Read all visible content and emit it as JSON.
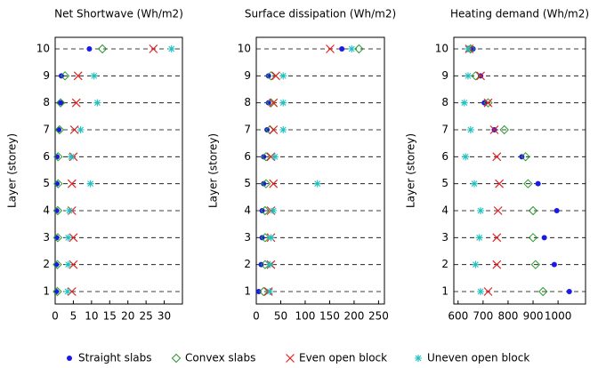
{
  "chart_data": [
    {
      "type": "dot",
      "title": "Net Shortwave (Wh/m2)",
      "ylabel": "Layer (storey)",
      "categories": [
        1,
        2,
        3,
        4,
        5,
        6,
        7,
        8,
        9,
        10
      ],
      "xlim": [
        0,
        35
      ],
      "xticks": [
        0,
        5,
        10,
        15,
        20,
        25,
        30
      ],
      "grid": true,
      "series": [
        {
          "name": "Straight slabs",
          "color": "#1a1ae6",
          "marker": "dot",
          "values": [
            0.3,
            0.3,
            0.4,
            0.4,
            0.5,
            0.5,
            1,
            1.5,
            1.7,
            9.4
          ]
        },
        {
          "name": "Convex slabs",
          "color": "#2a9a2a",
          "marker": "diamond",
          "values": [
            0.6,
            0.6,
            0.7,
            0.7,
            0.8,
            0.8,
            1.2,
            1.5,
            2.7,
            13
          ]
        },
        {
          "name": "Even open block",
          "color": "#e62020",
          "marker": "cross",
          "values": [
            4.6,
            5,
            5,
            4.6,
            4.6,
            5,
            5.3,
            5.8,
            6.3,
            27
          ]
        },
        {
          "name": "Uneven open block",
          "color": "#20c0c0",
          "marker": "star",
          "values": [
            3.4,
            3.6,
            3.6,
            3.9,
            9.7,
            4.4,
            7,
            11.6,
            10.7,
            32
          ]
        }
      ]
    },
    {
      "type": "dot",
      "title": "Surface dissipation (Wh/m2)",
      "ylabel": "Layer (storey)",
      "categories": [
        1,
        2,
        3,
        4,
        5,
        6,
        7,
        8,
        9,
        10
      ],
      "xlim": [
        0,
        262
      ],
      "xticks": [
        0,
        50,
        100,
        150,
        200,
        250
      ],
      "grid": true,
      "series": [
        {
          "values": [
            5,
            10,
            12,
            12,
            15,
            15,
            22,
            25,
            25,
            175
          ]
        },
        {
          "values": [
            15,
            18,
            18,
            18,
            20,
            20,
            28,
            30,
            30,
            210
          ]
        },
        {
          "values": [
            25,
            30,
            30,
            30,
            35,
            30,
            35,
            35,
            40,
            151
          ]
        },
        {
          "values": [
            28,
            28,
            30,
            35,
            125,
            38,
            55,
            55,
            55,
            195
          ]
        }
      ]
    },
    {
      "type": "dot",
      "title": "Heating demand (Wh/m2)",
      "ylabel": "Layer (storey)",
      "categories": [
        1,
        2,
        3,
        4,
        5,
        6,
        7,
        8,
        9,
        10
      ],
      "xlim": [
        583,
        1110
      ],
      "xticks": [
        600,
        700,
        800,
        900,
        1000
      ],
      "grid": true,
      "series": [
        {
          "values": [
            1045,
            985,
            945,
            995,
            920,
            855,
            745,
            705,
            690,
            660
          ]
        },
        {
          "values": [
            940,
            910,
            900,
            900,
            880,
            870,
            785,
            720,
            670,
            650
          ]
        },
        {
          "values": [
            720,
            755,
            755,
            760,
            765,
            755,
            745,
            720,
            690,
            645
          ]
        },
        {
          "values": [
            690,
            670,
            685,
            690,
            665,
            630,
            650,
            625,
            640,
            640
          ]
        }
      ]
    }
  ]
}
